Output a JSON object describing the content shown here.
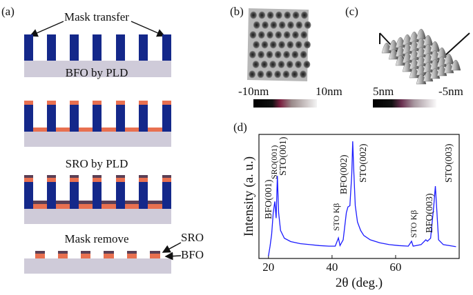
{
  "panels": {
    "a": {
      "label": "(a)",
      "steps": [
        "Mask transfer",
        "BFO by PLD",
        "SRO by PLD",
        "Mask remove"
      ],
      "layer_labels": [
        "SRO",
        "BFO"
      ]
    },
    "b": {
      "label": "(b)",
      "scale_min": "-10nm",
      "scale_max": "10nm"
    },
    "c": {
      "label": "(c)",
      "scale_min": "5nm",
      "scale_max": "-5nm"
    }
  },
  "chart_data": {
    "type": "line",
    "panel_label": "(d)",
    "x_label": "2θ (deg.)",
    "y_label": "Intensity (a. u.)",
    "xlim": [
      17,
      80
    ],
    "xticks": [
      20,
      40,
      60
    ],
    "ylim": [
      10,
      100000
    ],
    "log_y": true,
    "annotations": [
      "BFO(001)",
      "SRO(001)",
      "STO(001)",
      "STO Kβ",
      "BFO(002)",
      "STO(002)",
      "STO Kβ",
      "BFO(003)",
      "STO(003)"
    ],
    "series": [
      {
        "color": "#1a1aff",
        "x": [
          20,
          20.5,
          21,
          21.5,
          22,
          22.4,
          22.8,
          23.2,
          23.8,
          25,
          27,
          30,
          33,
          36,
          39,
          41,
          42,
          42.5,
          43.5,
          44.5,
          45,
          45.6,
          46.2,
          46.5,
          46.8,
          47.3,
          48,
          49,
          50,
          52,
          55,
          58,
          61,
          64,
          65,
          65.5,
          68,
          69.5,
          70,
          71,
          72,
          72.5,
          73,
          73.5,
          75,
          78,
          79
        ],
        "values": [
          12,
          25,
          60,
          300,
          690,
          200,
          4600,
          300,
          80,
          45,
          35,
          30,
          28,
          26,
          25,
          25,
          46,
          26,
          40,
          300,
          460,
          500,
          5000,
          60000,
          8000,
          500,
          150,
          80,
          55,
          40,
          32,
          28,
          26,
          25,
          36,
          25,
          28,
          40,
          36,
          45,
          500,
          2150,
          300,
          40,
          28,
          25,
          24
        ]
      }
    ]
  }
}
